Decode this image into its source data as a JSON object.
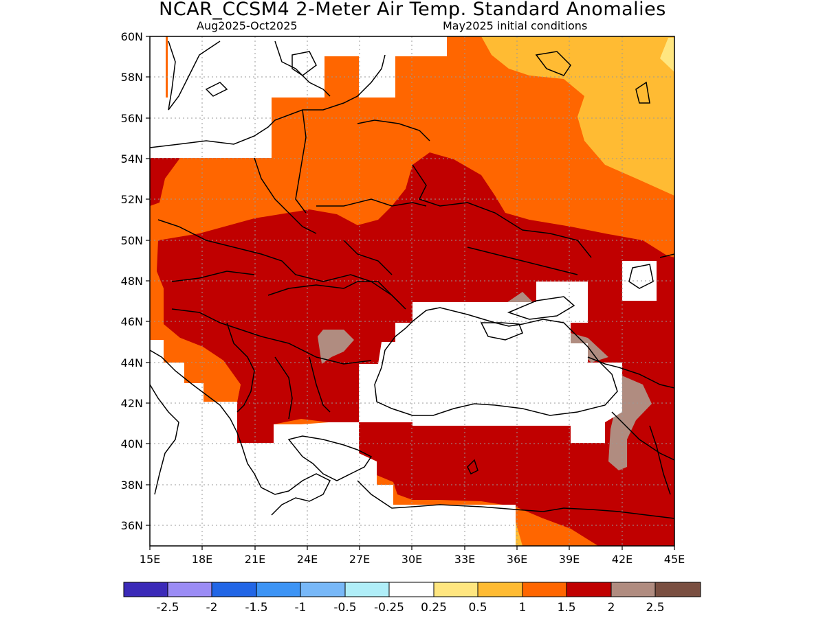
{
  "header": {
    "title": "NCAR_CCSM4 2-Meter Air Temp. Standard Anomalies",
    "season": "Aug2025-Oct2025",
    "init": "May2025 initial conditions"
  },
  "map": {
    "lon_range": [
      15,
      45
    ],
    "lat_range": [
      35,
      60
    ],
    "lat_ticks": [
      "60N",
      "58N",
      "56N",
      "54N",
      "52N",
      "50N",
      "48N",
      "46N",
      "44N",
      "42N",
      "40N",
      "38N",
      "36N"
    ],
    "lon_ticks": [
      "15E",
      "18E",
      "21E",
      "24E",
      "27E",
      "30E",
      "33E",
      "36E",
      "39E",
      "42E",
      "45E"
    ],
    "colors": {
      "c050_100": "#ffbb33",
      "c100_150": "#ff6600",
      "c150_200": "#c00000",
      "c200_250": "#b08c80",
      "c025_050": "#ffe680",
      "border": "#000000"
    }
  },
  "colorbar": {
    "colors": [
      "#3b2ab8",
      "#9b8cf5",
      "#2266e6",
      "#3d94f5",
      "#78b8f8",
      "#b0eef8",
      "#ffffff",
      "#ffe680",
      "#ffbb33",
      "#ff6600",
      "#c00000",
      "#b08c80",
      "#7a4f41"
    ],
    "labels": [
      "-2.5",
      "-2",
      "-1.5",
      "-1",
      "-0.5",
      "-0.25",
      "0.25",
      "0.5",
      "1",
      "1.5",
      "2",
      "2.5"
    ]
  }
}
